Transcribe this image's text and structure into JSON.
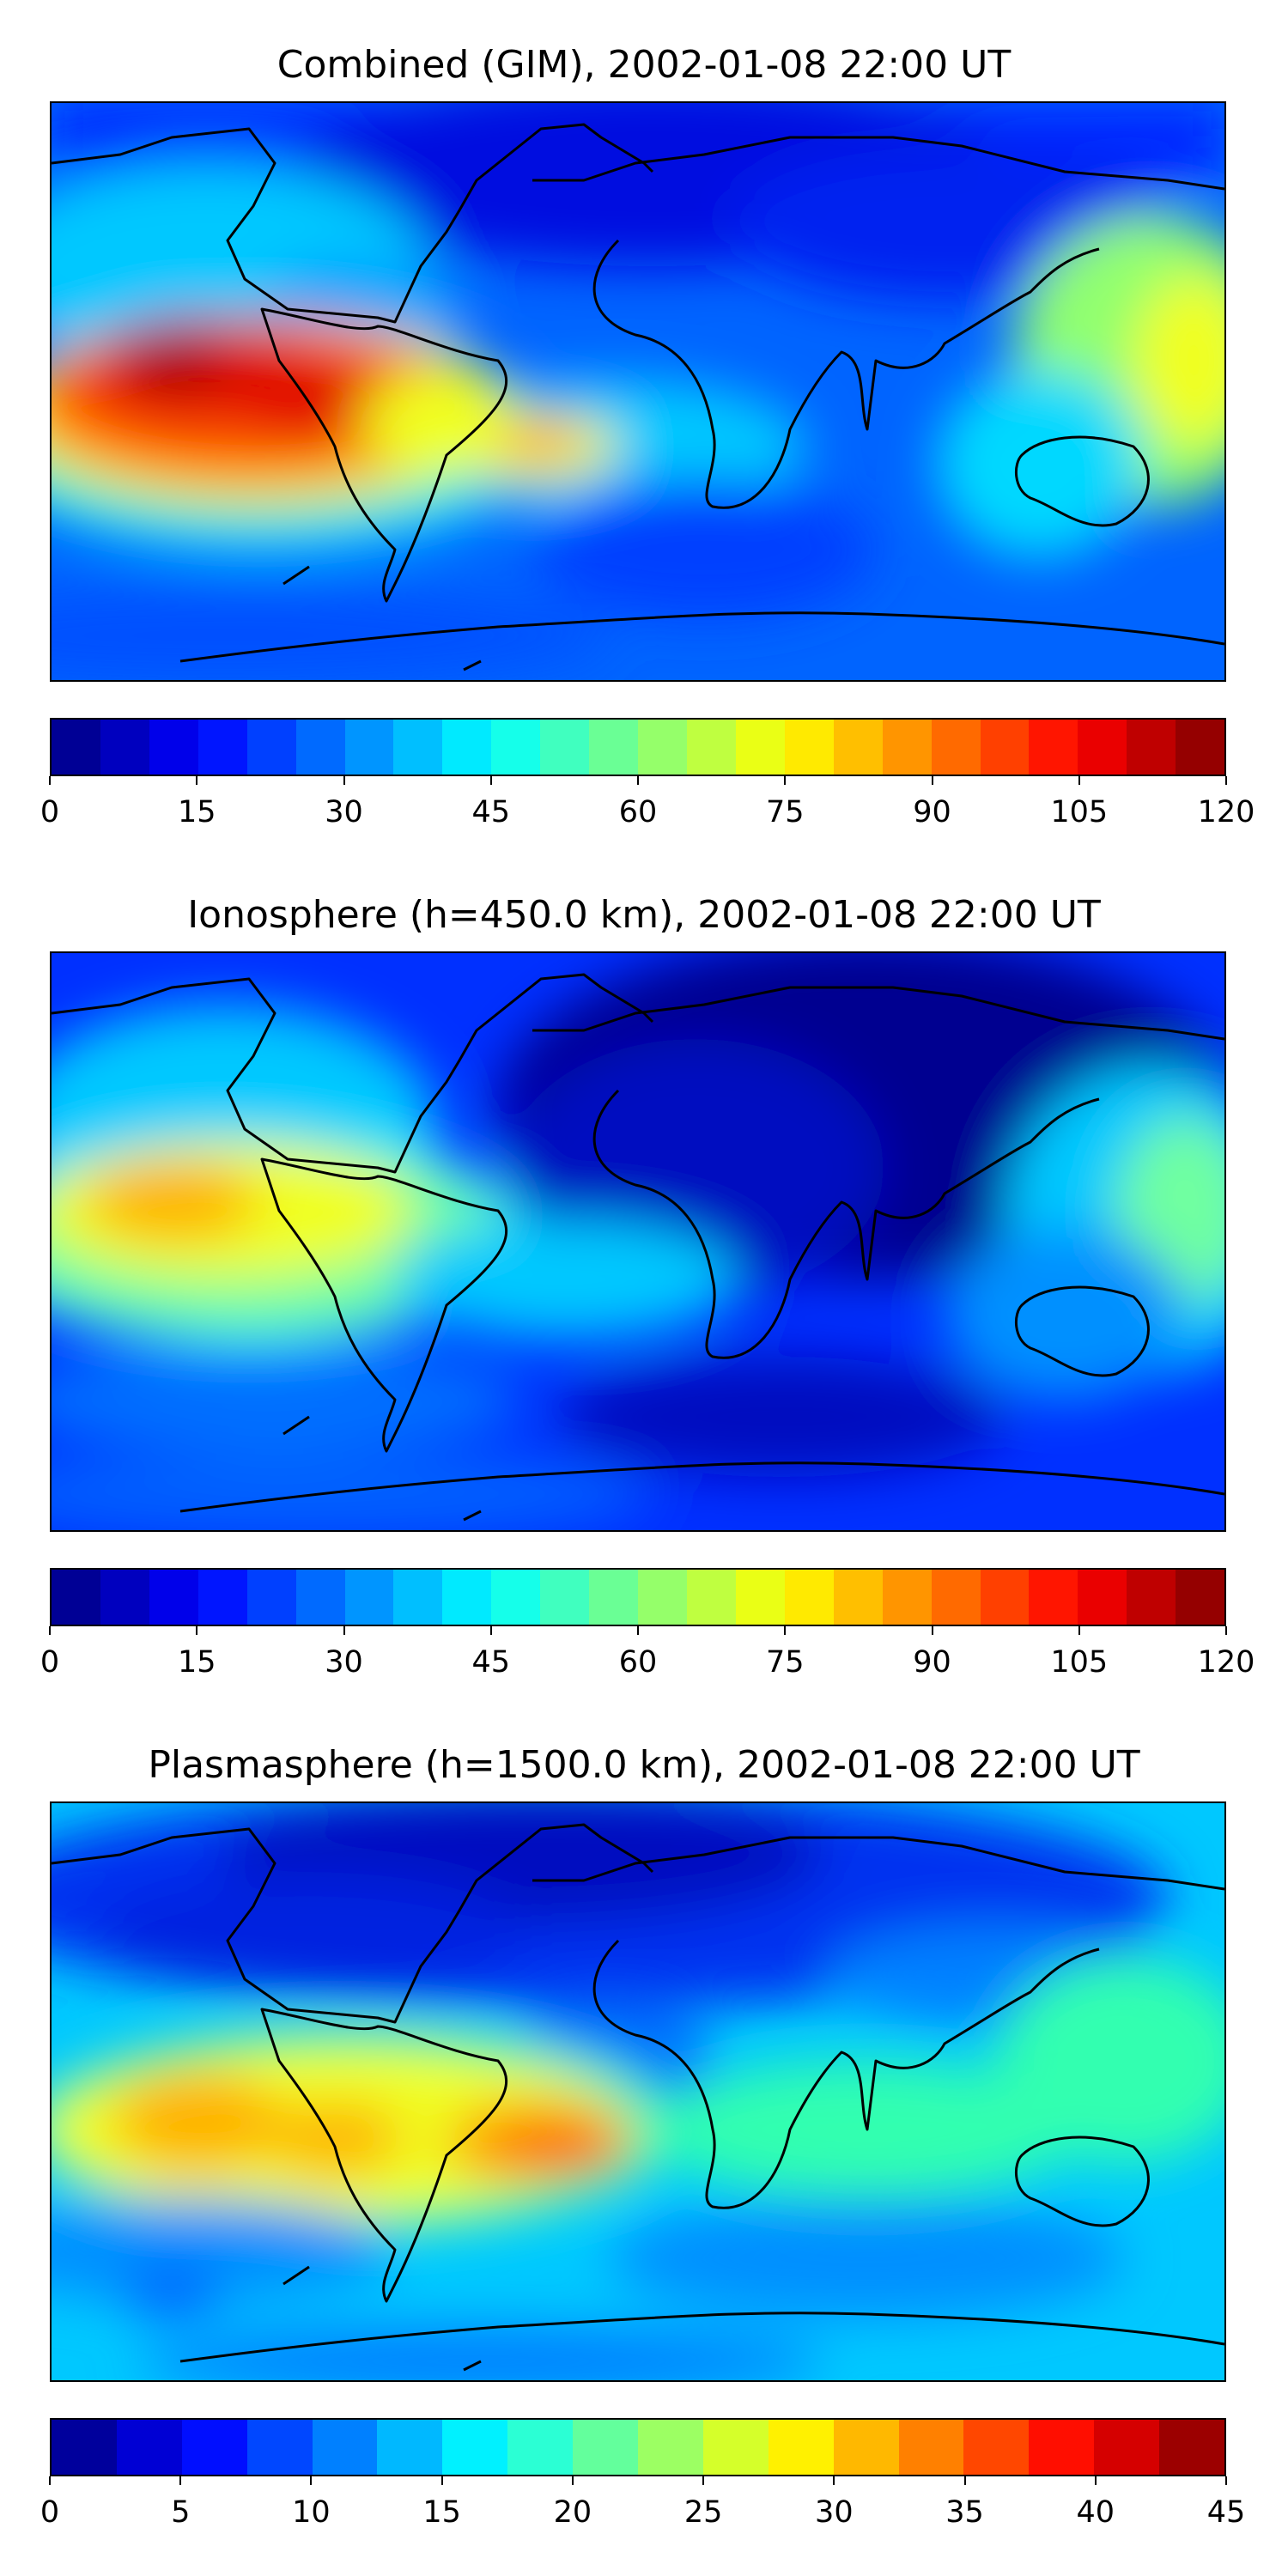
{
  "panels": [
    {
      "title": "Combined (GIM), 2002-01-08 22:00 UT",
      "colorbar_ticks": [
        "0",
        "15",
        "30",
        "45",
        "60",
        "75",
        "90",
        "105",
        "120"
      ],
      "colorbar_levels": 24,
      "range": [
        0,
        120
      ]
    },
    {
      "title": "Ionosphere  (h=450.0 km), 2002-01-08 22:00 UT",
      "colorbar_ticks": [
        "0",
        "15",
        "30",
        "45",
        "60",
        "75",
        "90",
        "105",
        "120"
      ],
      "colorbar_levels": 24,
      "range": [
        0,
        120
      ]
    },
    {
      "title": "Plasmasphere (h=1500.0 km), 2002-01-08 22:00 UT",
      "colorbar_ticks": [
        "0",
        "5",
        "10",
        "15",
        "20",
        "25",
        "30",
        "35",
        "40",
        "45"
      ],
      "colorbar_levels": 18,
      "range": [
        0,
        45
      ]
    }
  ],
  "colormap": "jet",
  "colors": {
    "ocean_deep": "#00008b",
    "coastline": "#000000"
  }
}
